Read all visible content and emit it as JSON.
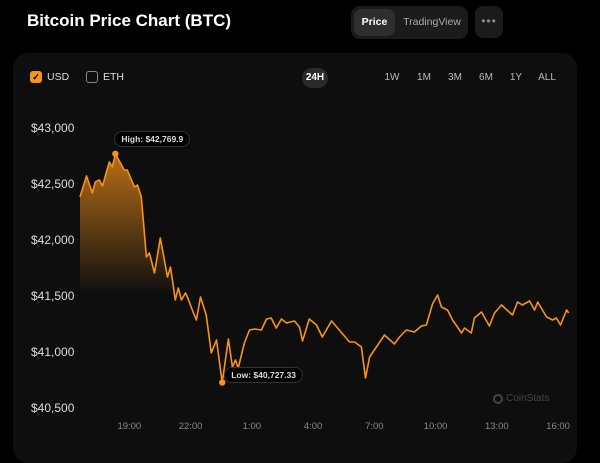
{
  "header": {
    "title": "Bitcoin Price Chart (BTC)",
    "views": [
      "Price",
      "TradingView"
    ],
    "active_view": "Price",
    "more_label": "•••"
  },
  "currencies": [
    {
      "label": "USD",
      "checked": true
    },
    {
      "label": "ETH",
      "checked": false
    }
  ],
  "timeframes": [
    "24H",
    "1W",
    "1M",
    "3M",
    "6M",
    "1Y",
    "ALL"
  ],
  "active_timeframe": "24H",
  "watermark": "CoinStats",
  "colors": {
    "accent": "#f7931a",
    "background": "#0e0e0e"
  },
  "chart_data": {
    "type": "area",
    "ylim": [
      40500,
      43000
    ],
    "yticks": [
      "$43,000",
      "$42,500",
      "$42,000",
      "$41,500",
      "$41,000",
      "$40,500"
    ],
    "ytick_values": [
      43000,
      42500,
      42000,
      41500,
      41000,
      40500
    ],
    "xticks": [
      "19:00",
      "22:00",
      "1:00",
      "4:00",
      "7:00",
      "10:00",
      "13:00",
      "16:00"
    ],
    "xrange": [
      "16:35",
      "16:35"
    ],
    "grid": false,
    "high": {
      "label": "High: $42,769.9",
      "value": 42769.9,
      "time": "18:19"
    },
    "low": {
      "label": "Low: $40,727.33",
      "value": 40727.33,
      "time": "23:33"
    },
    "points": [
      [
        "16:35",
        42387
      ],
      [
        "16:54",
        42571
      ],
      [
        "17:11",
        42420
      ],
      [
        "17:20",
        42520
      ],
      [
        "17:32",
        42536
      ],
      [
        "17:41",
        42482
      ],
      [
        "18:01",
        42696
      ],
      [
        "18:10",
        42652
      ],
      [
        "18:19",
        42769.9
      ],
      [
        "18:45",
        42625
      ],
      [
        "18:54",
        42625
      ],
      [
        "19:15",
        42473
      ],
      [
        "19:24",
        42491
      ],
      [
        "19:35",
        42384
      ],
      [
        "19:50",
        41848
      ],
      [
        "19:59",
        41884
      ],
      [
        "20:14",
        41705
      ],
      [
        "20:31",
        42018
      ],
      [
        "20:52",
        41670
      ],
      [
        "21:01",
        41759
      ],
      [
        "21:15",
        41464
      ],
      [
        "21:24",
        41571
      ],
      [
        "21:33",
        41464
      ],
      [
        "21:45",
        41527
      ],
      [
        "21:53",
        41473
      ],
      [
        "22:05",
        41375
      ],
      [
        "22:17",
        41286
      ],
      [
        "22:29",
        41491
      ],
      [
        "22:46",
        41330
      ],
      [
        "23:01",
        40991
      ],
      [
        "23:16",
        41107
      ],
      [
        "23:33",
        40727.33
      ],
      [
        "23:51",
        41116
      ],
      [
        "00:03",
        40866
      ],
      [
        "00:12",
        40929
      ],
      [
        "00:20",
        40857
      ],
      [
        "00:38",
        41080
      ],
      [
        "00:53",
        41196
      ],
      [
        "01:08",
        41205
      ],
      [
        "01:28",
        41196
      ],
      [
        "01:43",
        41295
      ],
      [
        "01:57",
        41304
      ],
      [
        "02:12",
        41214
      ],
      [
        "02:27",
        41295
      ],
      [
        "02:42",
        41259
      ],
      [
        "03:05",
        41277
      ],
      [
        "03:20",
        41223
      ],
      [
        "03:29",
        41098
      ],
      [
        "03:49",
        41295
      ],
      [
        "04:10",
        41241
      ],
      [
        "04:27",
        41134
      ],
      [
        "04:54",
        41277
      ],
      [
        "05:12",
        41214
      ],
      [
        "05:47",
        41089
      ],
      [
        "06:02",
        41089
      ],
      [
        "06:22",
        41045
      ],
      [
        "06:34",
        40768
      ],
      [
        "06:46",
        40955
      ],
      [
        "07:06",
        41045
      ],
      [
        "07:30",
        41152
      ],
      [
        "07:59",
        41071
      ],
      [
        "08:14",
        41134
      ],
      [
        "08:34",
        41196
      ],
      [
        "08:58",
        41179
      ],
      [
        "09:18",
        41232
      ],
      [
        "09:33",
        41241
      ],
      [
        "09:51",
        41429
      ],
      [
        "10:06",
        41509
      ],
      [
        "10:17",
        41402
      ],
      [
        "10:35",
        41375
      ],
      [
        "10:50",
        41286
      ],
      [
        "11:16",
        41170
      ],
      [
        "11:25",
        41214
      ],
      [
        "11:45",
        41170
      ],
      [
        "11:54",
        41304
      ],
      [
        "12:15",
        41357
      ],
      [
        "12:38",
        41232
      ],
      [
        "12:53",
        41348
      ],
      [
        "13:14",
        41420
      ],
      [
        "13:23",
        41393
      ],
      [
        "13:46",
        41330
      ],
      [
        "14:01",
        41446
      ],
      [
        "14:15",
        41420
      ],
      [
        "14:36",
        41455
      ],
      [
        "14:51",
        41375
      ],
      [
        "15:00",
        41446
      ],
      [
        "15:26",
        41313
      ],
      [
        "15:44",
        41286
      ],
      [
        "15:55",
        41304
      ],
      [
        "16:07",
        41241
      ],
      [
        "16:25",
        41375
      ],
      [
        "16:31",
        41348
      ]
    ]
  }
}
